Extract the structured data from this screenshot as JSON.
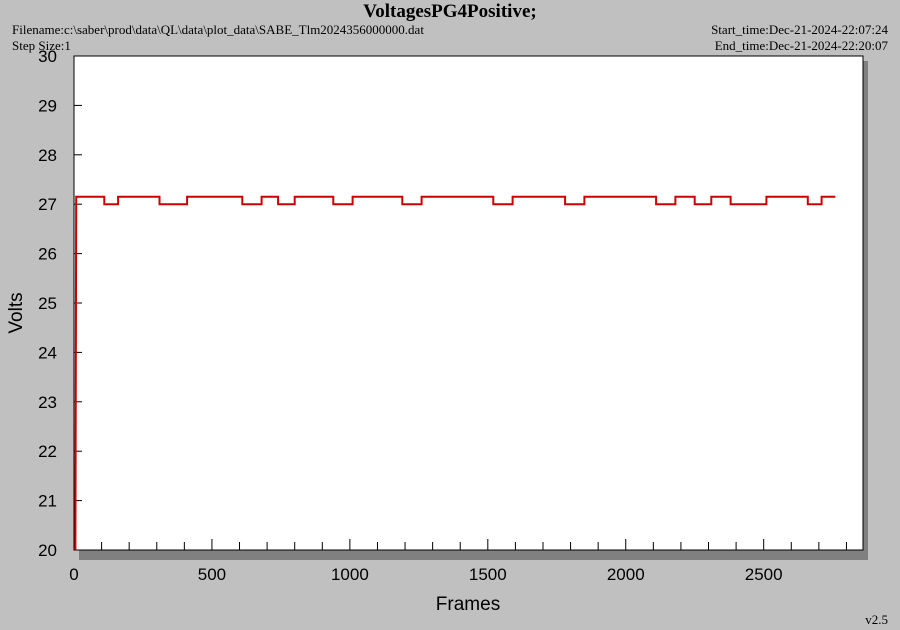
{
  "header": {
    "title": "VoltagesPG4Positive;",
    "filename": "Filename:c:\\saber\\prod\\data\\QL\\data\\plot_data\\SABE_Tlm2024356000000.dat",
    "step_size": "Step Size:1",
    "start_time": "Start_time:Dec-21-2024-22:07:24",
    "end_time": "End_time:Dec-21-2024-22:20:07"
  },
  "footer": {
    "version": "v2.5"
  },
  "chart_data": {
    "type": "line",
    "title": "VoltagesPG4Positive;",
    "xlabel": "Frames",
    "ylabel": "Volts",
    "xlim": [
      0,
      2860
    ],
    "ylim": [
      20,
      30
    ],
    "xticks": [
      0,
      500,
      1000,
      1500,
      2000,
      2500
    ],
    "yticks": [
      20,
      21,
      22,
      23,
      24,
      25,
      26,
      27,
      28,
      29,
      30
    ],
    "grid": false,
    "series": [
      {
        "color": "#cc0000",
        "x": [
          5,
          8,
          10,
          110,
          110,
          160,
          160,
          310,
          310,
          410,
          410,
          610,
          610,
          680,
          680,
          740,
          740,
          800,
          800,
          940,
          940,
          1010,
          1010,
          1190,
          1190,
          1260,
          1260,
          1520,
          1520,
          1590,
          1590,
          1780,
          1780,
          1850,
          1850,
          2110,
          2110,
          2180,
          2180,
          2250,
          2250,
          2310,
          2310,
          2380,
          2380,
          2510,
          2510,
          2660,
          2660,
          2710,
          2710,
          2760
        ],
        "y": [
          20,
          27.15,
          27.15,
          27.15,
          27.0,
          27.0,
          27.15,
          27.15,
          27.0,
          27.0,
          27.15,
          27.15,
          27.0,
          27.0,
          27.15,
          27.15,
          27.0,
          27.0,
          27.15,
          27.15,
          27.0,
          27.0,
          27.15,
          27.15,
          27.0,
          27.0,
          27.15,
          27.15,
          27.0,
          27.0,
          27.15,
          27.15,
          27.0,
          27.0,
          27.15,
          27.15,
          27.0,
          27.0,
          27.15,
          27.15,
          27.0,
          27.0,
          27.15,
          27.15,
          27.0,
          27.0,
          27.15,
          27.15,
          27.0,
          27.0,
          27.15,
          27.15
        ]
      }
    ]
  }
}
